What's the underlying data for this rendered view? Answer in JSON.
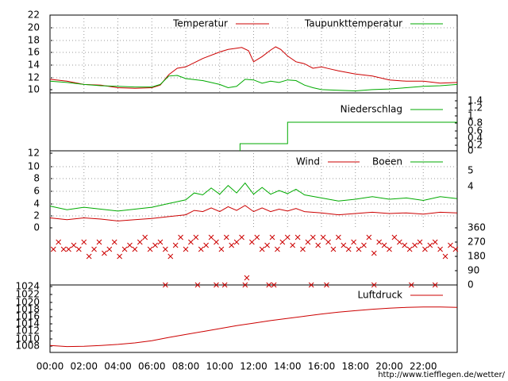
{
  "colors": {
    "temperature": "#cc0000",
    "dewpoint": "#00aa00",
    "precipitation": "#00aa00",
    "wind": "#cc0000",
    "gusts": "#00aa00",
    "direction": "#cc0000",
    "pressure": "#cc0000",
    "grid": "#999999",
    "credit": "#cc0000"
  },
  "time_axis": {
    "labels": [
      "00:00",
      "02:00",
      "04:00",
      "06:00",
      "08:00",
      "10:00",
      "12:00",
      "14:00",
      "16:00",
      "18:00",
      "20:00",
      "22:00"
    ]
  },
  "credit": "http://www.tiefflegen.de/wetter/",
  "chart_data": [
    {
      "type": "line",
      "panel": "temperature",
      "xlim": [
        0,
        24
      ],
      "ylim": [
        10,
        22
      ],
      "yticks": [
        "22",
        "20",
        "18",
        "16",
        "14",
        "12",
        "10"
      ],
      "grid": true,
      "legend": "top-right",
      "series": [
        {
          "name": "Temperatur",
          "color": "#cc0000",
          "x": [
            0,
            1,
            2,
            3,
            4,
            5,
            6,
            6.5,
            7,
            7.5,
            8,
            9,
            10,
            10.5,
            11,
            11.3,
            11.7,
            12,
            12.5,
            13,
            13.3,
            13.6,
            14,
            14.5,
            15,
            15.5,
            16,
            16.5,
            17,
            18,
            19,
            20,
            21,
            22,
            23,
            24
          ],
          "y": [
            12.1,
            11.8,
            11.3,
            11.2,
            10.8,
            10.7,
            10.8,
            11.2,
            12.8,
            13.8,
            14.0,
            15.3,
            16.3,
            16.7,
            16.9,
            17.0,
            16.5,
            14.8,
            15.6,
            16.6,
            17.1,
            16.7,
            15.7,
            14.8,
            14.5,
            13.8,
            14.0,
            13.7,
            13.4,
            12.9,
            12.6,
            12.0,
            11.8,
            11.8,
            11.5,
            11.6
          ]
        },
        {
          "name": "Taupunkttemperatur",
          "color": "#00aa00",
          "x": [
            0,
            1,
            2,
            3,
            4,
            5,
            6,
            6.5,
            7,
            7.5,
            8,
            9,
            10,
            10.5,
            11,
            11.5,
            12,
            12.5,
            13,
            13.5,
            14,
            14.5,
            15,
            15.5,
            16,
            17,
            18,
            19,
            20,
            21,
            22,
            23,
            24
          ],
          "y": [
            11.8,
            11.6,
            11.3,
            11.1,
            11.0,
            10.9,
            10.9,
            11.3,
            12.6,
            12.7,
            12.2,
            11.9,
            11.3,
            10.8,
            11.0,
            12.1,
            12.0,
            11.5,
            11.8,
            11.6,
            12.0,
            11.9,
            11.2,
            10.8,
            10.5,
            10.4,
            10.3,
            10.5,
            10.6,
            10.8,
            11.0,
            11.1,
            11.3
          ]
        }
      ]
    },
    {
      "type": "line",
      "panel": "precipitation",
      "xlim": [
        0,
        24
      ],
      "ylim": [
        0,
        1.4
      ],
      "yticks": [
        "1.4",
        "1.2",
        "1",
        "0.8",
        "0.6",
        "0.4",
        "0.2",
        "0"
      ],
      "grid": false,
      "legend": "top-right",
      "series": [
        {
          "name": "Niederschlag",
          "color": "#00aa00",
          "x": [
            11.2,
            11.2,
            14.0,
            14.0,
            24.0
          ],
          "y": [
            0.0,
            0.2,
            0.2,
            0.8,
            0.8
          ]
        }
      ]
    },
    {
      "type": "line",
      "panel": "wind",
      "xlim": [
        0,
        24
      ],
      "ylim": [
        0,
        12
      ],
      "yticks": [
        "12",
        "10",
        "8",
        "6",
        "4",
        "2",
        "0"
      ],
      "right_ticks": [
        "5",
        "4"
      ],
      "grid": true,
      "legend": "top-right",
      "series": [
        {
          "name": "Wind",
          "color": "#cc0000",
          "x": [
            0,
            1,
            2,
            3,
            4,
            5,
            6,
            7,
            8,
            8.5,
            9,
            9.5,
            10,
            10.5,
            11,
            11.5,
            12,
            12.5,
            13,
            13.5,
            14,
            14.5,
            15,
            16,
            17,
            18,
            19,
            20,
            21,
            22,
            23,
            24
          ],
          "y": [
            1.6,
            1.3,
            1.6,
            1.4,
            1.1,
            1.3,
            1.5,
            1.8,
            2.1,
            2.8,
            2.6,
            3.2,
            2.6,
            3.4,
            2.8,
            3.6,
            2.6,
            3.2,
            2.6,
            3.0,
            2.7,
            3.1,
            2.6,
            2.4,
            2.1,
            2.3,
            2.5,
            2.3,
            2.4,
            2.2,
            2.5,
            2.4
          ]
        },
        {
          "name": "Boeen",
          "color": "#00aa00",
          "x": [
            0,
            1,
            2,
            3,
            4,
            5,
            6,
            7,
            8,
            8.5,
            9,
            9.5,
            10,
            10.5,
            11,
            11.5,
            12,
            12.5,
            13,
            13.5,
            14,
            14.5,
            15,
            16,
            17,
            18,
            19,
            20,
            21,
            22,
            23,
            24
          ],
          "y": [
            3.5,
            2.9,
            3.3,
            3.0,
            2.7,
            3.0,
            3.3,
            3.9,
            4.5,
            5.6,
            5.3,
            6.4,
            5.4,
            6.8,
            5.6,
            7.2,
            5.4,
            6.5,
            5.4,
            6.0,
            5.5,
            6.2,
            5.3,
            4.8,
            4.3,
            4.6,
            5.0,
            4.6,
            4.8,
            4.4,
            5.0,
            4.7
          ]
        }
      ]
    },
    {
      "type": "scatter",
      "panel": "wind_direction",
      "xlim": [
        0,
        24
      ],
      "ylim": [
        0,
        360
      ],
      "yticks": [
        "360",
        "270",
        "180",
        "90",
        "0"
      ],
      "grid": false,
      "series": [
        {
          "name": "",
          "color": "#cc0000",
          "x": [
            0.2,
            0.5,
            0.8,
            1.1,
            1.4,
            1.7,
            2.0,
            2.3,
            2.6,
            2.9,
            3.2,
            3.5,
            3.8,
            4.1,
            4.4,
            4.7,
            5.0,
            5.3,
            5.6,
            5.9,
            6.2,
            6.5,
            6.8,
            7.1,
            7.4,
            7.7,
            8.0,
            8.3,
            8.6,
            8.9,
            9.2,
            9.5,
            9.8,
            10.1,
            10.4,
            10.7,
            11.0,
            11.3,
            11.6,
            11.9,
            12.2,
            12.5,
            12.8,
            13.1,
            13.4,
            13.7,
            14.0,
            14.3,
            14.6,
            14.9,
            15.2,
            15.5,
            15.8,
            16.1,
            16.4,
            16.7,
            17.0,
            17.3,
            17.6,
            17.9,
            18.2,
            18.5,
            18.8,
            19.1,
            19.4,
            19.7,
            20.0,
            20.3,
            20.6,
            20.9,
            21.2,
            21.5,
            21.8,
            22.1,
            22.4,
            22.7,
            23.0,
            23.3,
            23.6,
            23.9
          ],
          "y": [
            225,
            270,
            225,
            225,
            250,
            225,
            270,
            180,
            225,
            270,
            200,
            225,
            270,
            180,
            225,
            250,
            225,
            270,
            300,
            225,
            250,
            270,
            225,
            180,
            250,
            300,
            225,
            270,
            300,
            225,
            250,
            300,
            270,
            225,
            300,
            250,
            270,
            300,
            45,
            270,
            300,
            225,
            250,
            300,
            225,
            270,
            300,
            250,
            300,
            225,
            270,
            300,
            250,
            300,
            270,
            225,
            300,
            250,
            225,
            270,
            225,
            250,
            300,
            200,
            270,
            250,
            225,
            300,
            270,
            250,
            225,
            250,
            270,
            225,
            250,
            270,
            225,
            180,
            250,
            225
          ]
        },
        {
          "name": "",
          "color": "#cc0000",
          "x": [
            6.8,
            8.7,
            9.8,
            10.3,
            11.5,
            12.9,
            13.2,
            15.4,
            16.3,
            19.1,
            21.3,
            22.7
          ],
          "y": [
            0,
            0,
            0,
            0,
            0,
            0,
            0,
            0,
            0,
            0,
            0,
            0
          ]
        }
      ]
    },
    {
      "type": "line",
      "panel": "pressure",
      "xlim": [
        0,
        24
      ],
      "ylim": [
        1006,
        1024
      ],
      "yticks": [
        "1024",
        "1022",
        "1020",
        "1018",
        "1016",
        "1014",
        "1012",
        "1010",
        "1008"
      ],
      "grid": false,
      "legend": "top-right",
      "series": [
        {
          "name": "Luftdruck",
          "color": "#cc0000",
          "x": [
            0,
            1,
            2,
            3,
            4,
            5,
            6,
            7,
            8,
            9,
            10,
            11,
            12,
            13,
            14,
            15,
            16,
            17,
            18,
            19,
            20,
            21,
            22,
            23,
            24
          ],
          "y": [
            1007.9,
            1007.6,
            1007.7,
            1007.9,
            1008.2,
            1008.6,
            1009.2,
            1010.1,
            1010.9,
            1011.7,
            1012.5,
            1013.3,
            1014.0,
            1014.7,
            1015.3,
            1015.9,
            1016.5,
            1017.0,
            1017.4,
            1017.8,
            1018.1,
            1018.3,
            1018.4,
            1018.4,
            1018.3
          ]
        }
      ]
    }
  ]
}
